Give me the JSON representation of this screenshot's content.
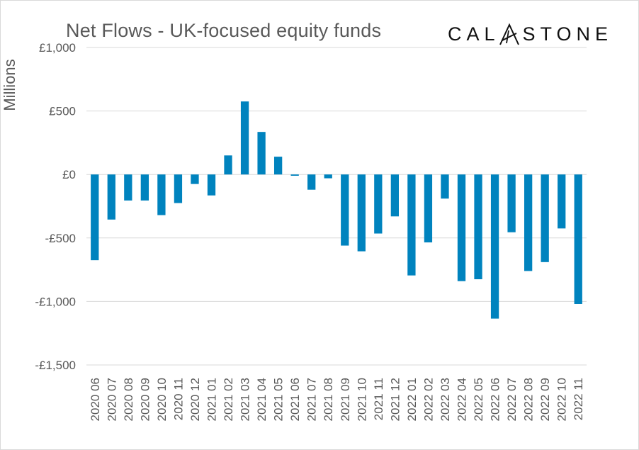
{
  "chart_data": {
    "type": "bar",
    "title": "Net Flows - UK-focused equity funds",
    "ylabel": "Millions",
    "xlabel": "",
    "ylim": [
      -1500,
      1000
    ],
    "yticks": [
      1000,
      500,
      0,
      -500,
      -1000,
      -1500
    ],
    "ytick_labels": [
      "£1,000",
      "£500",
      "£0",
      "-£500",
      "-£1,000",
      "-£1,500"
    ],
    "grid": true,
    "legend": "none",
    "bar_color": "#0083BE",
    "categories": [
      "2020 06",
      "2020 07",
      "2020 08",
      "2020 09",
      "2020 10",
      "2020 11",
      "2020 12",
      "2021 01",
      "2021 02",
      "2021 03",
      "2021 04",
      "2021 05",
      "2021 06",
      "2021 07",
      "2021 08",
      "2021 09",
      "2021 10",
      "2021 11",
      "2021 12",
      "2022 01",
      "2022 02",
      "2022 03",
      "2022 04",
      "2022 05",
      "2022 06",
      "2022 07",
      "2022 08",
      "2022 09",
      "2022 10",
      "2022 11"
    ],
    "values": [
      -675,
      -355,
      -205,
      -205,
      -320,
      -225,
      -75,
      -165,
      150,
      575,
      335,
      140,
      -10,
      -120,
      -30,
      -560,
      -605,
      -465,
      -330,
      -795,
      -535,
      -190,
      -840,
      -825,
      -1135,
      -455,
      -760,
      -690,
      -425,
      -1020
    ]
  },
  "brand": {
    "text_left": "CAL",
    "text_right": "STONE",
    "mark_icon": "calastone-a-icon"
  }
}
